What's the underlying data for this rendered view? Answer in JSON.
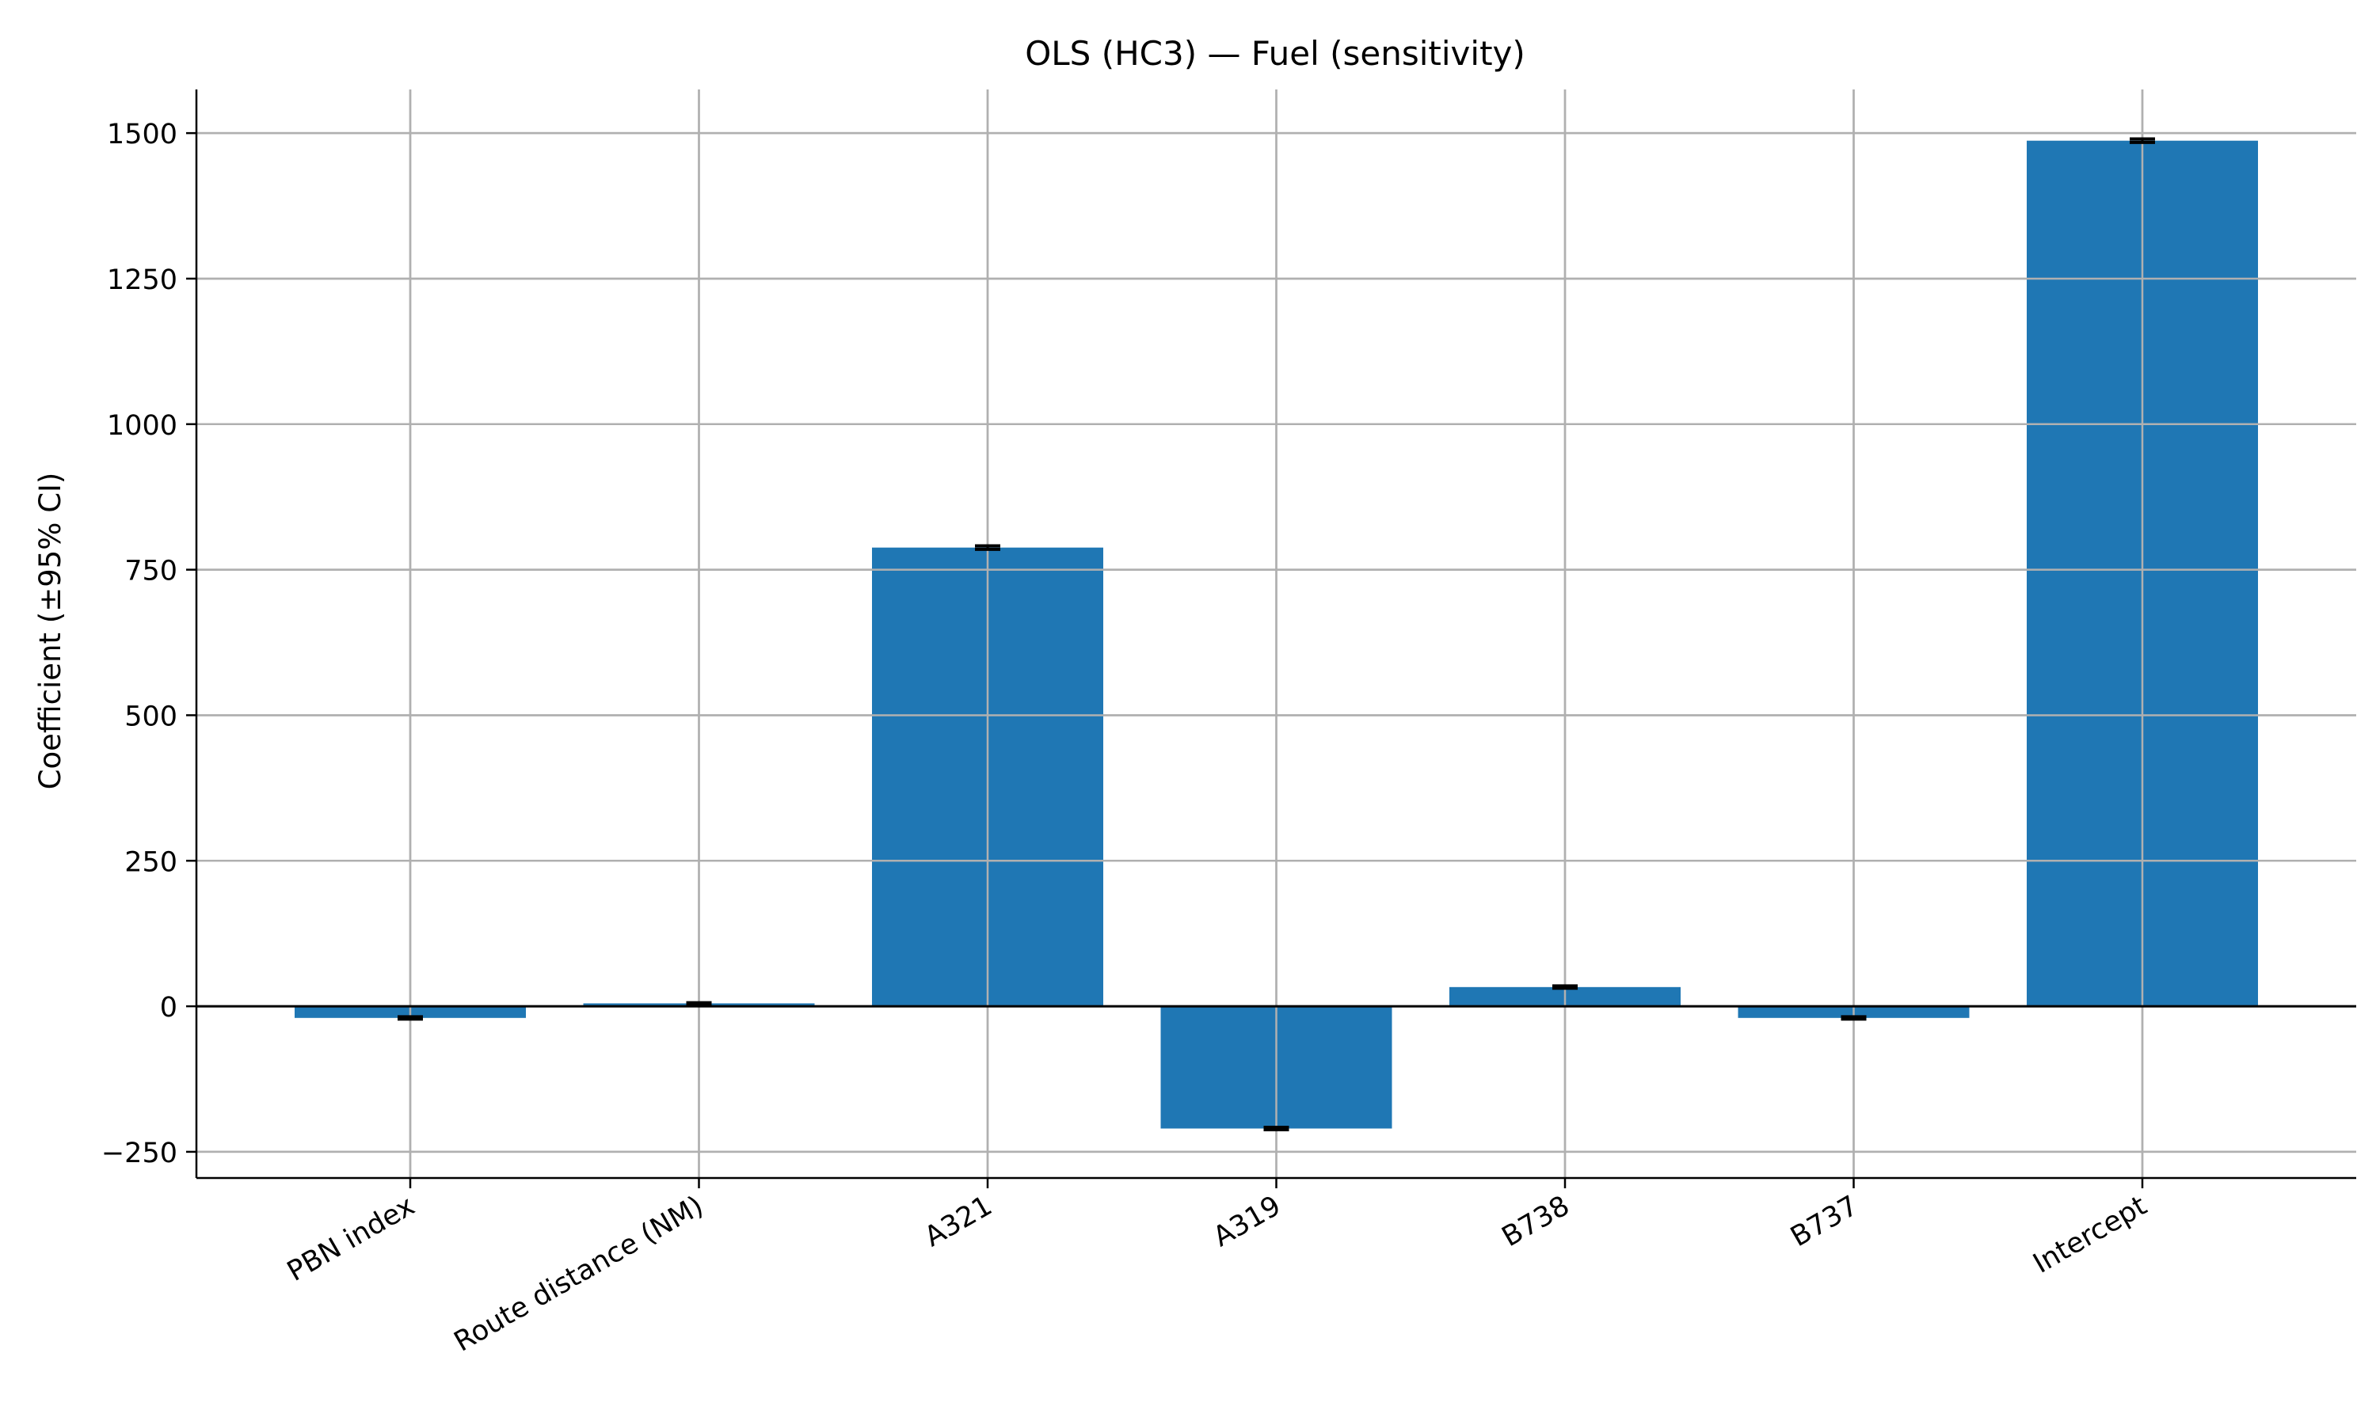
{
  "chart_data": {
    "type": "bar",
    "title": "OLS (HC3) — Fuel (sensitivity)",
    "xlabel": "",
    "ylabel": "Coefficient (±95% CI)",
    "categories": [
      "PBN index",
      "Route distance (NM)",
      "A321",
      "A319",
      "B738",
      "B737",
      "Intercept"
    ],
    "values": [
      -20,
      5,
      788,
      -210,
      33,
      -20,
      1487
    ],
    "ci_half_width": [
      2,
      1,
      3,
      2,
      2,
      2,
      3
    ],
    "ylim": [
      -295,
      1575
    ],
    "yticks": [
      -250,
      0,
      250,
      500,
      750,
      1000,
      1250,
      1500
    ],
    "ytick_labels": [
      "−250",
      "0",
      "250",
      "500",
      "750",
      "1000",
      "1250",
      "1500"
    ],
    "grid": true,
    "zero_line": true,
    "legend": "none",
    "colors": {
      "bar": "#1f77b4",
      "grid": "#b0b0b0",
      "axis": "#000000",
      "errorbar": "#000000"
    }
  }
}
